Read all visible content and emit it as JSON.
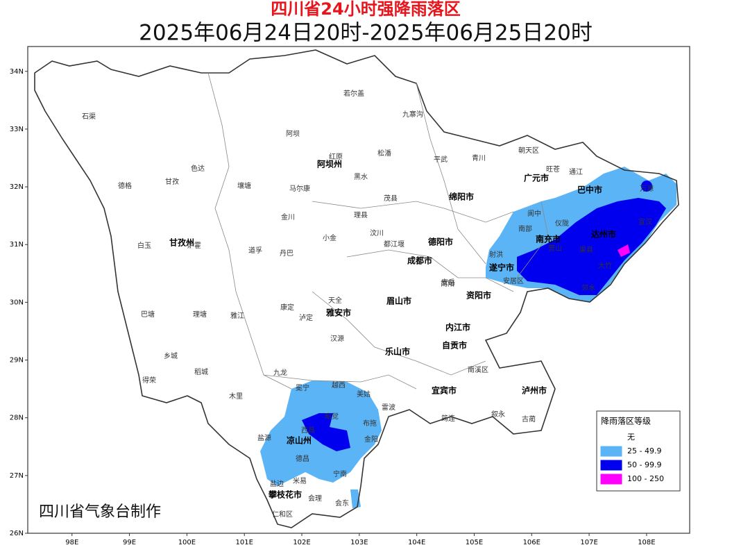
{
  "header": {
    "title": "四川省24小时强降雨落区",
    "subtitle": "2025年06月24日20时-2025年06月25日20时"
  },
  "map": {
    "xlim": [
      97.23,
      108.75
    ],
    "ylim": [
      26,
      34.43
    ],
    "xticks": [
      {
        "value": 98,
        "label": "98E"
      },
      {
        "value": 99,
        "label": "99E"
      },
      {
        "value": 100,
        "label": "100E"
      },
      {
        "value": 101,
        "label": "101E"
      },
      {
        "value": 102,
        "label": "102E"
      },
      {
        "value": 103,
        "label": "103E"
      },
      {
        "value": 104,
        "label": "104E"
      },
      {
        "value": 105,
        "label": "105E"
      },
      {
        "value": 106,
        "label": "106E"
      },
      {
        "value": 107,
        "label": "107E"
      },
      {
        "value": 108,
        "label": "108E"
      }
    ],
    "yticks": [
      {
        "value": 26,
        "label": "26N"
      },
      {
        "value": 27,
        "label": "27N"
      },
      {
        "value": 28,
        "label": "28N"
      },
      {
        "value": 29,
        "label": "29N"
      },
      {
        "value": 30,
        "label": "30N"
      },
      {
        "value": 31,
        "label": "31N"
      },
      {
        "value": 32,
        "label": "32N"
      },
      {
        "value": 33,
        "label": "33N"
      },
      {
        "value": 34,
        "label": "34N"
      }
    ],
    "places": [
      "石渠",
      "若尔盖",
      "九寨沟",
      "阿坝",
      "德格",
      "甘孜",
      "色达",
      "壤塘",
      "红原",
      "阿坝州",
      "松潘",
      "黑水",
      "马尔康",
      "平武",
      "青川",
      "朝天区",
      "旺苍",
      "通江",
      "万源",
      "巴中市",
      "广元市",
      "绵阳市",
      "茂县",
      "理县",
      "金川",
      "白玉",
      "甘孜州",
      "炉霍",
      "道孚",
      "丹巴",
      "小金",
      "汶川",
      "都江堰",
      "成都市",
      "德阳市",
      "南充市",
      "遂宁市",
      "达州市",
      "宣汉",
      "大竹",
      "邻水",
      "阆中",
      "南部",
      "仪陇",
      "营山",
      "渠县",
      "巴塘",
      "理塘",
      "雅江",
      "康定",
      "泸定",
      "雅安市",
      "天全",
      "汉源",
      "乐山市",
      "眉山市",
      "资阳市",
      "内江市",
      "自贡市",
      "宜宾市",
      "泸州市",
      "安岳",
      "稻城",
      "乡城",
      "得荣",
      "木里",
      "九龙",
      "冕宁",
      "越西",
      "美姑",
      "雷波",
      "西昌",
      "凉山州",
      "昭觉",
      "布拖",
      "金阳",
      "德昌",
      "宁南",
      "盐源",
      "米易",
      "攀枝花市",
      "会理",
      "会东",
      "盐边",
      "仁和区",
      "叙永",
      "古蔺",
      "筠连",
      "南溪区",
      "简阳",
      "安居区",
      "射洪"
    ],
    "credit": "四川省气象台制作"
  },
  "legend": {
    "title": "降雨落区等级",
    "items": [
      {
        "label": "无",
        "color": "#ffffff"
      },
      {
        "label": "25 - 49.9",
        "color": "#5ab4f5"
      },
      {
        "label": "50 - 99.9",
        "color": "#0000ee"
      },
      {
        "label": "100 - 250",
        "color": "#ff00ff"
      }
    ]
  }
}
